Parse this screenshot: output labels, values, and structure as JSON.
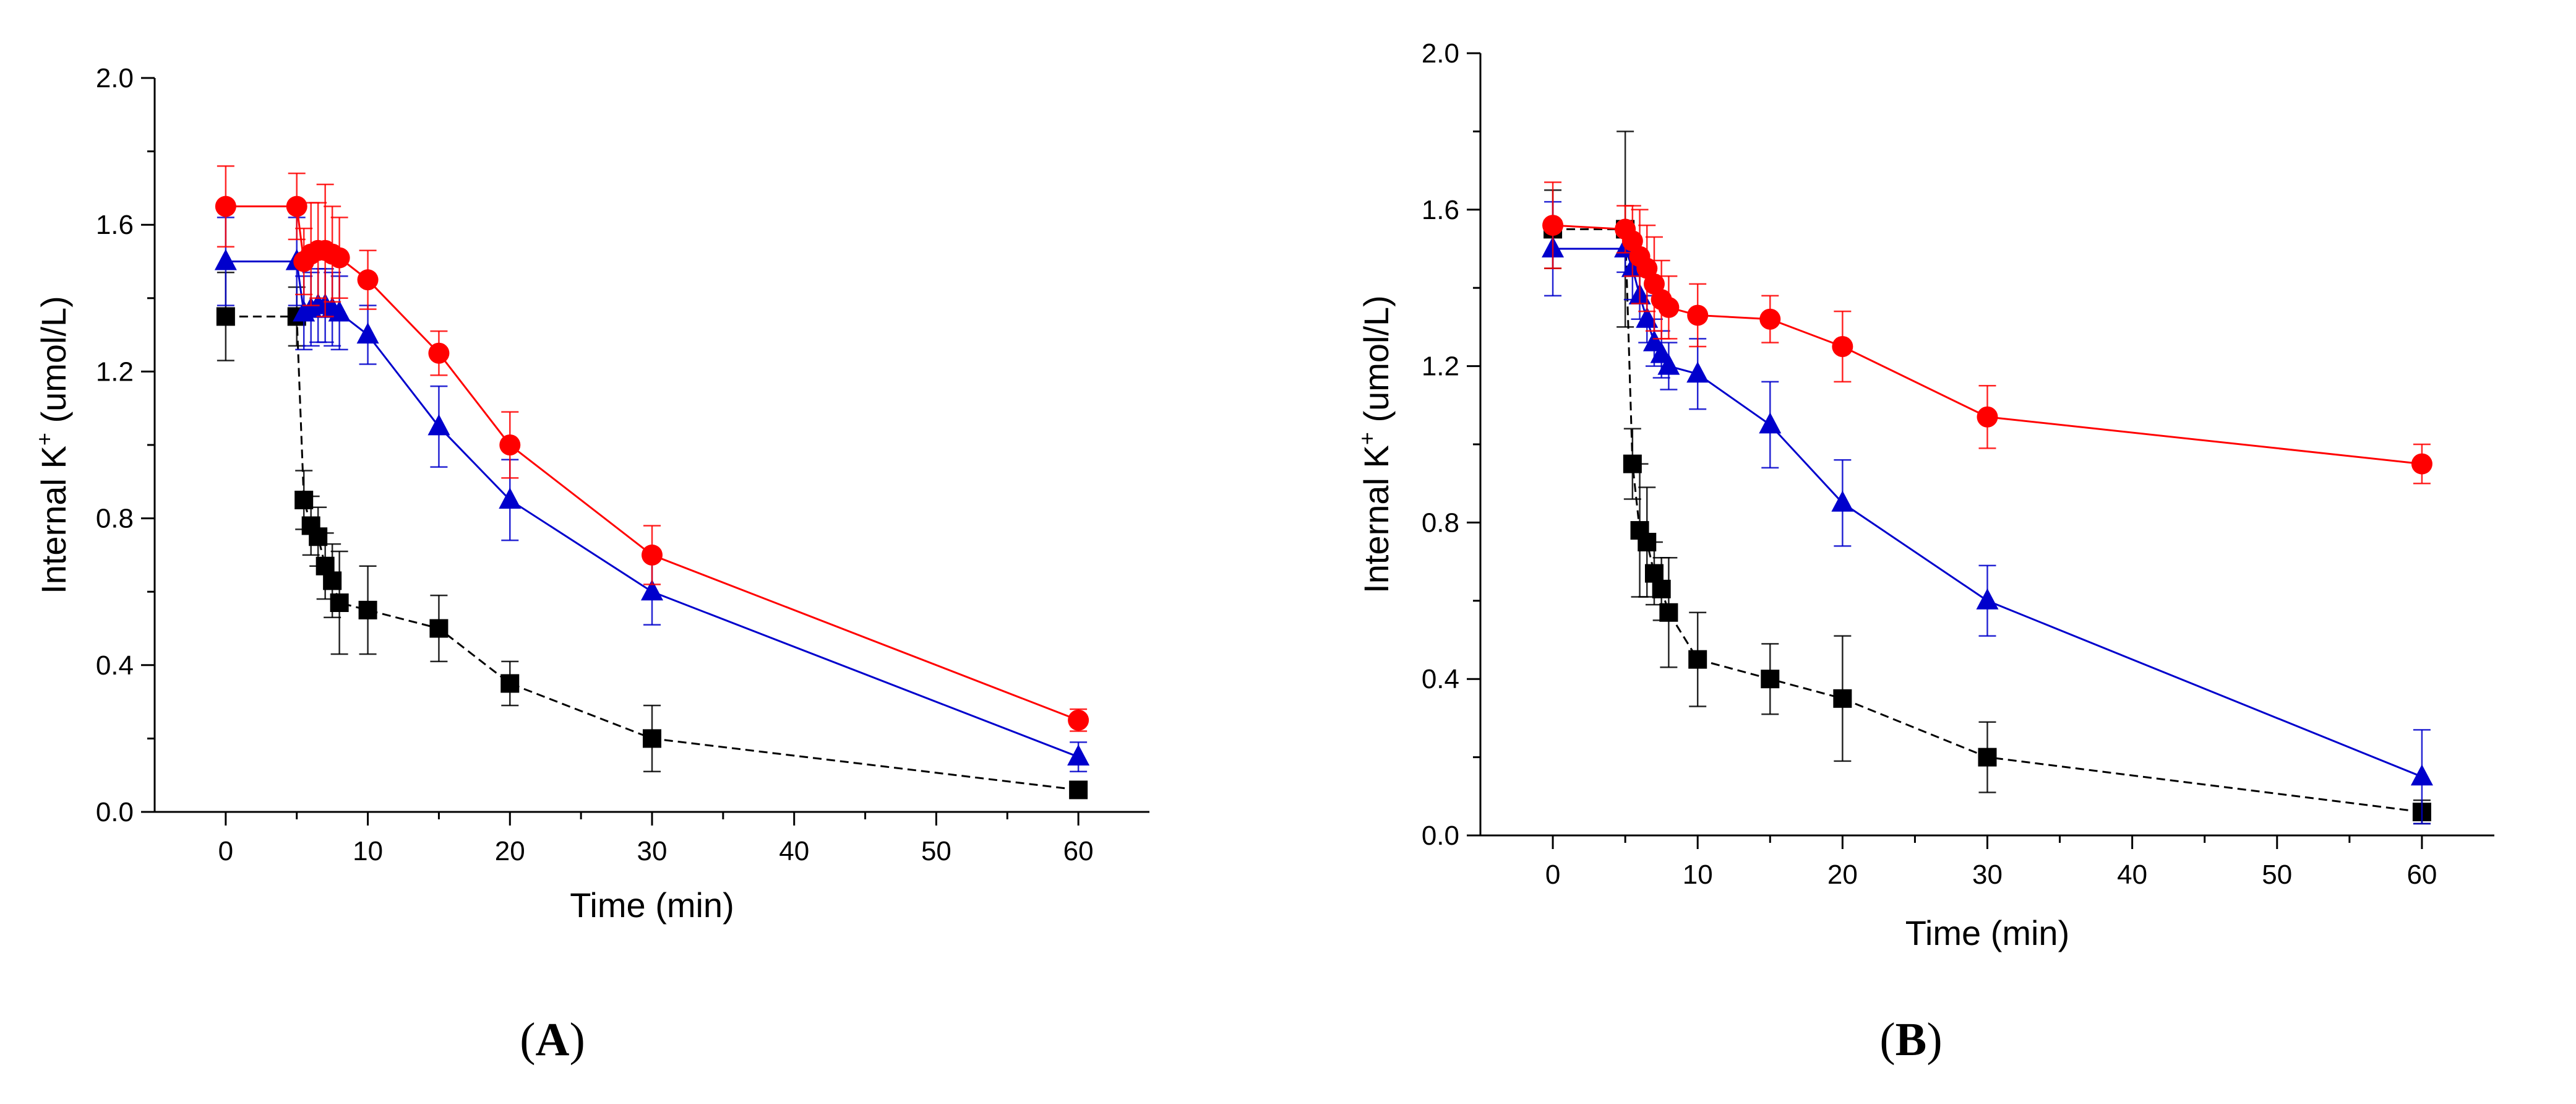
{
  "chart_data": [
    {
      "type": "line",
      "panel_label": "A",
      "xlabel": "Time (min)",
      "ylabel": "Internal K",
      "ylabel_superscript": "+",
      "ylabel_suffix": " (umol/L)",
      "xlim": [
        -5,
        65
      ],
      "ylim": [
        0,
        2.0
      ],
      "xticks": [
        0,
        10,
        20,
        30,
        40,
        50,
        60
      ],
      "yticks": [
        0.0,
        0.4,
        0.8,
        1.2,
        1.6,
        2.0
      ],
      "ytick_labels": [
        "0.0",
        "0.4",
        "0.8",
        "1.2",
        "1.6",
        "2.0"
      ],
      "series": [
        {
          "name": "black squares",
          "color": "#000000",
          "marker": "square",
          "dashed": true,
          "x": [
            0,
            5,
            5.5,
            6,
            6.5,
            7,
            7.5,
            8,
            10,
            15,
            20,
            30,
            60
          ],
          "y": [
            1.35,
            1.35,
            0.85,
            0.78,
            0.75,
            0.67,
            0.63,
            0.57,
            0.55,
            0.5,
            0.35,
            0.2,
            0.06
          ],
          "err": [
            0.12,
            0.08,
            0.08,
            0.08,
            0.08,
            0.09,
            0.1,
            0.14,
            0.12,
            0.09,
            0.06,
            0.09,
            0.02
          ]
        },
        {
          "name": "blue triangles",
          "color": "#0000cc",
          "marker": "triangle",
          "dashed": false,
          "x": [
            0,
            5,
            5.5,
            6,
            6.5,
            7,
            7.5,
            8,
            10,
            15,
            20,
            30,
            60
          ],
          "y": [
            1.5,
            1.5,
            1.36,
            1.37,
            1.38,
            1.38,
            1.37,
            1.36,
            1.3,
            1.05,
            0.85,
            0.6,
            0.15
          ],
          "err": [
            0.12,
            0.12,
            0.1,
            0.1,
            0.1,
            0.1,
            0.1,
            0.1,
            0.08,
            0.11,
            0.11,
            0.09,
            0.04
          ]
        },
        {
          "name": "red circles",
          "color": "#ff0000",
          "marker": "circle",
          "dashed": false,
          "x": [
            0,
            5,
            5.5,
            6,
            6.5,
            7,
            7.5,
            8,
            10,
            15,
            20,
            30,
            60
          ],
          "y": [
            1.65,
            1.65,
            1.5,
            1.52,
            1.53,
            1.53,
            1.52,
            1.51,
            1.45,
            1.25,
            1.0,
            0.7,
            0.25
          ],
          "err": [
            0.11,
            0.09,
            0.09,
            0.14,
            0.13,
            0.18,
            0.13,
            0.11,
            0.08,
            0.06,
            0.09,
            0.08,
            0.03
          ]
        }
      ]
    },
    {
      "type": "line",
      "panel_label": "B",
      "xlabel": "Time (min)",
      "ylabel": "Internal K",
      "ylabel_superscript": "+",
      "ylabel_suffix": " (umol/L)",
      "xlim": [
        -5,
        65
      ],
      "ylim": [
        0,
        2.0
      ],
      "xticks": [
        0,
        10,
        20,
        30,
        40,
        50,
        60
      ],
      "yticks": [
        0.0,
        0.4,
        0.8,
        1.2,
        1.6,
        2.0
      ],
      "ytick_labels": [
        "0.0",
        "0.4",
        "0.8",
        "1.2",
        "1.6",
        "2.0"
      ],
      "series": [
        {
          "name": "black squares",
          "color": "#000000",
          "marker": "square",
          "dashed": true,
          "x": [
            0,
            5,
            5.5,
            6,
            6.5,
            7,
            7.5,
            8,
            10,
            15,
            20,
            30,
            60
          ],
          "y": [
            1.55,
            1.55,
            0.95,
            0.78,
            0.75,
            0.67,
            0.63,
            0.57,
            0.45,
            0.4,
            0.35,
            0.2,
            0.06
          ],
          "err": [
            0.1,
            0.25,
            0.09,
            0.17,
            0.14,
            0.08,
            0.08,
            0.14,
            0.12,
            0.09,
            0.16,
            0.09,
            0.03
          ]
        },
        {
          "name": "blue triangles",
          "color": "#0000cc",
          "marker": "triangle",
          "dashed": false,
          "x": [
            0,
            5,
            5.5,
            6,
            6.5,
            7,
            7.5,
            8,
            10,
            15,
            20,
            30,
            60
          ],
          "y": [
            1.5,
            1.5,
            1.45,
            1.38,
            1.32,
            1.26,
            1.23,
            1.2,
            1.18,
            1.05,
            0.85,
            0.6,
            0.15
          ],
          "err": [
            0.12,
            0.06,
            0.08,
            0.06,
            0.06,
            0.06,
            0.06,
            0.06,
            0.09,
            0.11,
            0.11,
            0.09,
            0.12
          ]
        },
        {
          "name": "red circles",
          "color": "#ff0000",
          "marker": "circle",
          "dashed": false,
          "x": [
            0,
            5,
            5.5,
            6,
            6.5,
            7,
            7.5,
            8,
            10,
            15,
            20,
            30,
            60
          ],
          "y": [
            1.56,
            1.55,
            1.52,
            1.48,
            1.45,
            1.41,
            1.37,
            1.35,
            1.33,
            1.32,
            1.25,
            1.07,
            0.95
          ],
          "err": [
            0.11,
            0.06,
            0.09,
            0.12,
            0.11,
            0.12,
            0.1,
            0.08,
            0.08,
            0.06,
            0.09,
            0.08,
            0.05
          ]
        }
      ]
    }
  ]
}
